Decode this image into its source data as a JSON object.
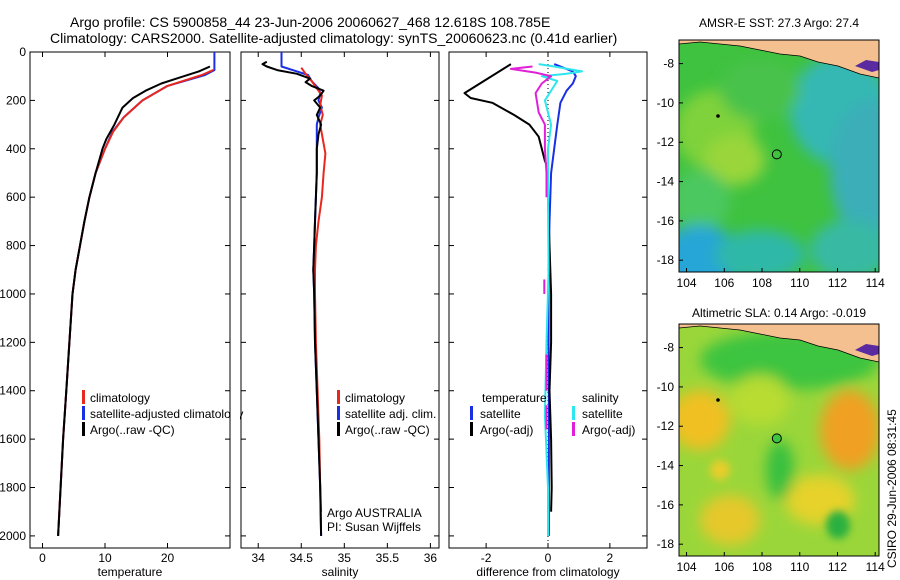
{
  "header": {
    "line1": "Argo profile: CS 5900858_44 23-Jun-2006 20060627_468 12.618S 108.785E",
    "line2": "Climatology: CARS2000. Satellite-adjusted climatology: synTS_20060623.nc (0.41d earlier)"
  },
  "side_stamp": "CSIRO 29-Jun-2006 08:31:45",
  "colors": {
    "climatology": "#e8281e",
    "satellite": "#1a2ee6",
    "argo": "#000000",
    "sat_salinity": "#2ee6ee",
    "argo_adj_salinity": "#e020d8",
    "land": "#f5c08f"
  },
  "chart_data": [
    {
      "type": "line",
      "id": "temperature",
      "xlabel": "temperature",
      "xlim": [
        -2,
        30
      ],
      "ylim": [
        2050,
        0
      ],
      "xticks": [
        0,
        10,
        20
      ],
      "yticks": [
        0,
        200,
        400,
        600,
        800,
        1000,
        1200,
        1400,
        1600,
        1800,
        2000
      ],
      "legend": {
        "entries": [
          {
            "label": "climatology",
            "color": "#e8281e"
          },
          {
            "label": "satellite-adjusted climatology",
            "color": "#1a2ee6"
          },
          {
            "label": "Argo(..raw -QC)",
            "color": "#000000"
          }
        ]
      },
      "series": [
        {
          "color": "#1a2ee6",
          "points": [
            [
              27.5,
              0
            ],
            [
              27.5,
              75
            ],
            [
              26,
              95
            ],
            [
              20,
              140
            ],
            [
              16,
              200
            ],
            [
              13,
              270
            ],
            [
              11.2,
              330
            ],
            [
              10,
              400
            ],
            [
              8.5,
              500
            ],
            [
              7.5,
              600
            ],
            [
              6.7,
              700
            ],
            [
              6,
              800
            ],
            [
              5.3,
              900
            ],
            [
              4.8,
              1000
            ],
            [
              4.3,
              1200
            ],
            [
              3.8,
              1400
            ],
            [
              3.3,
              1600
            ],
            [
              2.9,
              1800
            ],
            [
              2.5,
              2000
            ]
          ]
        },
        {
          "color": "#e8281e",
          "points": [
            [
              27.3,
              75
            ],
            [
              25.5,
              95
            ],
            [
              20,
              140
            ],
            [
              16,
              200
            ],
            [
              13,
              270
            ],
            [
              11.3,
              330
            ],
            [
              10,
              400
            ],
            [
              8.5,
              500
            ],
            [
              7.5,
              600
            ],
            [
              6.7,
              700
            ],
            [
              6,
              800
            ],
            [
              5.3,
              900
            ],
            [
              4.8,
              1000
            ],
            [
              4.3,
              1200
            ],
            [
              3.8,
              1400
            ],
            [
              3.3,
              1600
            ],
            [
              2.9,
              1800
            ],
            [
              2.5,
              2000
            ]
          ]
        },
        {
          "color": "#000000",
          "points": [
            [
              26.8,
              60
            ],
            [
              25,
              80
            ],
            [
              22,
              105
            ],
            [
              19,
              130
            ],
            [
              16.5,
              160
            ],
            [
              14.5,
              190
            ],
            [
              12.8,
              230
            ],
            [
              11.5,
              300
            ],
            [
              10.2,
              360
            ],
            [
              9.6,
              400
            ],
            [
              8.5,
              500
            ],
            [
              7.5,
              600
            ],
            [
              6.7,
              700
            ],
            [
              6,
              800
            ],
            [
              5.3,
              900
            ],
            [
              4.8,
              1000
            ],
            [
              4.3,
              1200
            ],
            [
              3.8,
              1400
            ],
            [
              3.3,
              1600
            ],
            [
              2.9,
              1800
            ],
            [
              2.5,
              2000
            ]
          ]
        }
      ]
    },
    {
      "type": "line",
      "id": "salinity",
      "xlabel": "salinity",
      "xlim": [
        33.8,
        36.1
      ],
      "ylim": [
        2050,
        0
      ],
      "xticks": [
        34,
        34.5,
        35,
        35.5,
        36
      ],
      "legend": {
        "entries": [
          {
            "label": "climatology",
            "color": "#e8281e"
          },
          {
            "label": "satellite adj. clim.",
            "color": "#1a2ee6"
          },
          {
            "label": "Argo(..raw -QC)",
            "color": "#000000"
          }
        ]
      },
      "annotation": [
        "Argo AUSTRALIA",
        "PI: Susan Wijffels"
      ],
      "series": [
        {
          "color": "#1a2ee6",
          "points": [
            [
              34.27,
              0
            ],
            [
              34.27,
              60
            ],
            [
              34.45,
              80
            ],
            [
              34.58,
              95
            ],
            [
              34.62,
              120
            ],
            [
              34.7,
              150
            ],
            [
              34.72,
              170
            ],
            [
              34.7,
              200
            ],
            [
              34.74,
              230
            ],
            [
              34.7,
              270
            ],
            [
              34.68,
              300
            ],
            [
              34.68,
              400
            ],
            [
              34.68,
              500
            ],
            [
              34.67,
              600
            ],
            [
              34.66,
              700
            ],
            [
              34.65,
              800
            ],
            [
              34.64,
              900
            ],
            [
              34.65,
              1000
            ],
            [
              34.66,
              1200
            ],
            [
              34.68,
              1400
            ],
            [
              34.7,
              1600
            ],
            [
              34.72,
              1800
            ],
            [
              34.73,
              2000
            ]
          ]
        },
        {
          "color": "#e8281e",
          "points": [
            [
              34.5,
              65
            ],
            [
              34.55,
              90
            ],
            [
              34.62,
              120
            ],
            [
              34.68,
              150
            ],
            [
              34.74,
              180
            ],
            [
              34.72,
              220
            ],
            [
              34.75,
              260
            ],
            [
              34.72,
              300
            ],
            [
              34.75,
              360
            ],
            [
              34.78,
              420
            ],
            [
              34.76,
              500
            ],
            [
              34.74,
              600
            ],
            [
              34.7,
              700
            ],
            [
              34.67,
              800
            ],
            [
              34.66,
              900
            ],
            [
              34.66,
              1000
            ],
            [
              34.67,
              1200
            ],
            [
              34.69,
              1400
            ],
            [
              34.71,
              1600
            ],
            [
              34.72,
              1800
            ],
            [
              34.73,
              1900
            ]
          ]
        },
        {
          "color": "#000000",
          "points": [
            [
              34.1,
              40
            ],
            [
              34.05,
              50
            ],
            [
              34.1,
              60
            ],
            [
              34.22,
              75
            ],
            [
              34.45,
              90
            ],
            [
              34.6,
              110
            ],
            [
              34.55,
              125
            ],
            [
              34.62,
              140
            ],
            [
              34.76,
              160
            ],
            [
              34.72,
              180
            ],
            [
              34.65,
              200
            ],
            [
              34.72,
              230
            ],
            [
              34.68,
              260
            ],
            [
              34.73,
              300
            ],
            [
              34.7,
              340
            ],
            [
              34.68,
              400
            ],
            [
              34.68,
              500
            ],
            [
              34.67,
              600
            ],
            [
              34.66,
              700
            ],
            [
              34.65,
              800
            ],
            [
              34.64,
              900
            ],
            [
              34.65,
              1000
            ],
            [
              34.66,
              1200
            ],
            [
              34.68,
              1400
            ],
            [
              34.7,
              1600
            ],
            [
              34.72,
              1800
            ],
            [
              34.73,
              2000
            ]
          ]
        }
      ]
    },
    {
      "type": "line",
      "id": "difference",
      "xlabel": "difference from climatology",
      "xlim": [
        -3.2,
        3.2
      ],
      "ylim": [
        2050,
        0
      ],
      "xticks": [
        -2,
        0,
        2
      ],
      "legend": {
        "entries": [
          {
            "label": "temperature",
            "color": null
          },
          {
            "label": "satellite",
            "color": "#1a2ee6"
          },
          {
            "label": "Argo(-adj)",
            "color": "#000000"
          },
          {
            "label": "salinity",
            "color": null
          },
          {
            "label": "satellite",
            "color": "#2ee6ee"
          },
          {
            "label": "Argo(-adj)",
            "color": "#e020d8"
          }
        ]
      },
      "series": [
        {
          "color": "#1a2ee6",
          "points": [
            [
              0.2,
              50
            ],
            [
              0.8,
              80
            ],
            [
              0.9,
              100
            ],
            [
              0.8,
              130
            ],
            [
              0.6,
              160
            ],
            [
              0.4,
              210
            ],
            [
              0.3,
              300
            ],
            [
              0.2,
              400
            ],
            [
              0.1,
              500
            ],
            [
              0.05,
              700
            ],
            [
              0.02,
              900
            ],
            [
              0.02,
              1200
            ],
            [
              0.03,
              1500
            ],
            [
              0.03,
              2000
            ]
          ]
        },
        {
          "color": "#000000",
          "points": [
            [
              -1.2,
              50
            ],
            [
              -2.7,
              170
            ],
            [
              -2.5,
              190
            ],
            [
              -1.8,
              210
            ],
            [
              -1.1,
              260
            ],
            [
              -0.6,
              300
            ],
            [
              -0.3,
              350
            ],
            [
              -0.2,
              400
            ],
            [
              -0.1,
              450
            ],
            [
              0,
              480
            ],
            [
              0,
              600
            ],
            [
              0.05,
              800
            ],
            [
              0.1,
              1000
            ],
            [
              0.1,
              1200
            ],
            [
              0.05,
              1400
            ],
            [
              0.1,
              1600
            ],
            [
              0.12,
              1800
            ],
            [
              0.1,
              1900
            ]
          ]
        },
        {
          "color": "#2ee6ee",
          "points": [
            [
              -0.3,
              50
            ],
            [
              0.2,
              60
            ],
            [
              1.1,
              80
            ],
            [
              0.6,
              90
            ],
            [
              -0.2,
              100
            ],
            [
              0.3,
              120
            ],
            [
              0.1,
              160
            ],
            [
              -0.1,
              200
            ],
            [
              0.1,
              300
            ],
            [
              0,
              400
            ],
            [
              0,
              600
            ],
            [
              0.02,
              900
            ],
            [
              -0.05,
              1200
            ],
            [
              -0.1,
              1500
            ],
            [
              0,
              1800
            ],
            [
              0,
              2000
            ]
          ]
        },
        {
          "color": "#e020d8",
          "points": [
            [
              -0.5,
              60
            ],
            [
              -1.2,
              70
            ],
            [
              -0.4,
              85
            ],
            [
              0.1,
              100
            ],
            [
              -0.2,
              130
            ],
            [
              -0.4,
              170
            ],
            [
              -0.3,
              250
            ],
            [
              -0.1,
              300
            ],
            [
              -0.1,
              400
            ],
            [
              -0.05,
              500
            ],
            [
              -0.05,
              600
            ]
          ]
        }
      ],
      "segments": [
        {
          "color": "#e020d8",
          "x": -0.12,
          "y": [
            940,
            1000
          ]
        },
        {
          "color": "#e020d8",
          "x": -0.05,
          "y": [
            1250,
            1400
          ]
        },
        {
          "color": "#e020d8",
          "x": -0.05,
          "y": [
            1460,
            1560
          ]
        }
      ]
    },
    {
      "type": "heatmap",
      "id": "sst-map",
      "title": "AMSR-E SST: 27.3 Argo: 27.4",
      "xlim": [
        103.6,
        114.2
      ],
      "ylim": [
        -18.6,
        -6.8
      ],
      "xticks": [
        104,
        106,
        108,
        110,
        112,
        114
      ],
      "yticks": [
        -8,
        -10,
        -12,
        -14,
        -16,
        -18
      ],
      "marker": {
        "lon": 108.785,
        "lat": -12.618,
        "filled": false
      }
    },
    {
      "type": "heatmap",
      "id": "sla-map",
      "title": "Altimetric SLA: 0.14 Argo: -0.019",
      "xlim": [
        103.6,
        114.2
      ],
      "ylim": [
        -18.6,
        -6.8
      ],
      "xticks": [
        104,
        106,
        108,
        110,
        112,
        114
      ],
      "yticks": [
        -8,
        -10,
        -12,
        -14,
        -16,
        -18
      ],
      "marker": {
        "lon": 108.785,
        "lat": -12.618,
        "filled": true
      }
    }
  ]
}
